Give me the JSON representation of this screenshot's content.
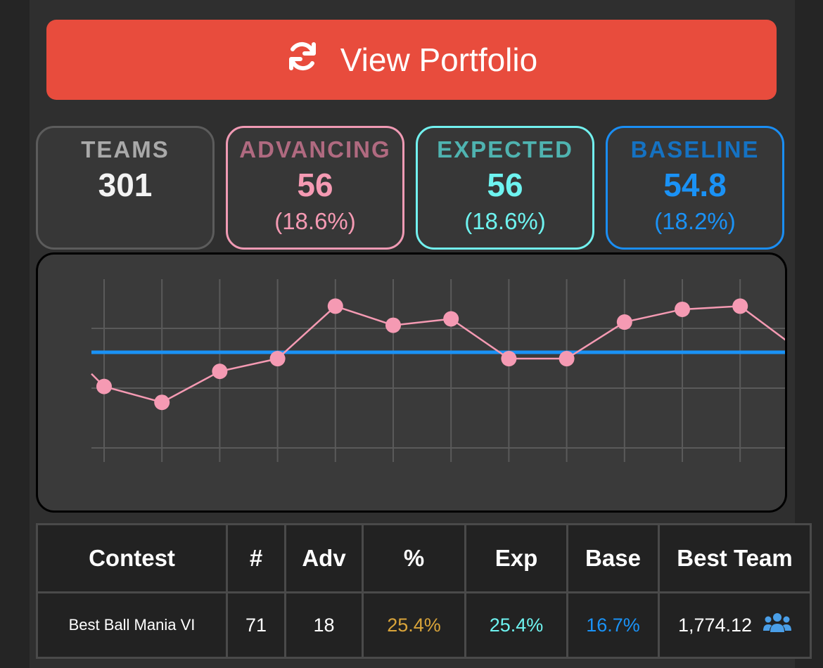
{
  "button": {
    "label": "View Portfolio",
    "icon": "refresh-icon"
  },
  "stats": {
    "teams": {
      "label": "TEAMS",
      "value": "301"
    },
    "advancing": {
      "label": "ADVANCING",
      "value": "56",
      "pct": "(18.6%)",
      "color": "#f59ab3"
    },
    "expected": {
      "label": "EXPECTED",
      "value": "56",
      "pct": "(18.6%)",
      "color": "#6ef3f0"
    },
    "baseline": {
      "label": "BASELINE",
      "value": "54.8",
      "pct": "(18.2%)",
      "color": "#1a92f6"
    }
  },
  "chart_data": {
    "type": "line",
    "series": [
      {
        "values": [
          19.5,
          17.5,
          21.4,
          23.0,
          29.6,
          27.2,
          28.0,
          23.0,
          23.0,
          27.6,
          29.2,
          29.6
        ]
      }
    ],
    "baseline": 23.8,
    "ylim": [
      10,
      33
    ],
    "grid": true,
    "colors": {
      "series": "#f59ab3",
      "baseline": "#1a92f6",
      "grid": "#5a5a5a"
    }
  },
  "table": {
    "headers": [
      "Contest",
      "#",
      "Adv",
      "%",
      "Exp",
      "Base",
      "Best Team"
    ],
    "rows": [
      {
        "contest": "Best Ball Mania VI",
        "count": "71",
        "adv": "18",
        "pct": "25.4%",
        "exp": "25.4%",
        "base": "16.7%",
        "best": "1,774.12",
        "icon": "users-icon"
      }
    ]
  }
}
